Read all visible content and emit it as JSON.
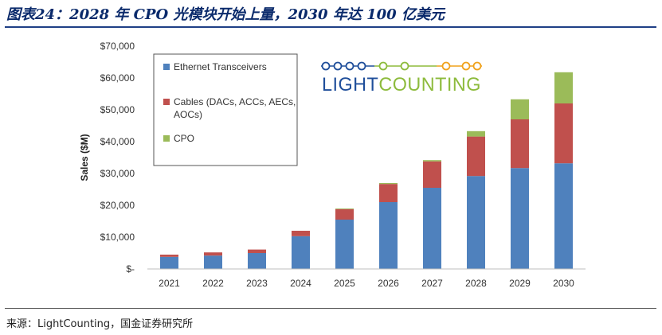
{
  "figure": {
    "title": "图表24：2028 年 CPO 光模块开始上量，2030 年达 100 亿美元",
    "source": "来源：LightCounting，国金证券研究所"
  },
  "logo": {
    "text_light": "LIGHT",
    "text_counting": "COUNTING",
    "color_dark": "#1f4e9a",
    "color_orange": "#f0a21c",
    "color_green": "#8dbb3c"
  },
  "chart_data": {
    "type": "bar",
    "stacked": true,
    "categories": [
      "2021",
      "2022",
      "2023",
      "2024",
      "2025",
      "2026",
      "2027",
      "2028",
      "2029",
      "2030"
    ],
    "series": [
      {
        "name": "Ethernet Transceivers",
        "color": "#4f81bd",
        "values": [
          3800,
          4200,
          5000,
          10300,
          15500,
          21000,
          25500,
          29200,
          31700,
          33200
        ]
      },
      {
        "name": "Cables (DACs, ACCs, AECs, AOCs)",
        "name_lines": [
          "Cables (DACs, ACCs, AECs,",
          "AOCs)"
        ],
        "color": "#c0504d",
        "values": [
          700,
          1000,
          1100,
          1700,
          3300,
          5700,
          8300,
          12400,
          15300,
          18800
        ]
      },
      {
        "name": "CPO",
        "color": "#9bbb59",
        "values": [
          0,
          0,
          0,
          0,
          200,
          300,
          400,
          1700,
          6300,
          9800
        ]
      }
    ],
    "title": "",
    "xlabel": "",
    "ylabel": "Sales ($M)",
    "ylim": [
      0,
      70000
    ],
    "yticks": [
      0,
      10000,
      20000,
      30000,
      40000,
      50000,
      60000,
      70000
    ],
    "ytick_labels": [
      "$-",
      "$10,000",
      "$20,000",
      "$30,000",
      "$40,000",
      "$50,000",
      "$60,000",
      "$70,000"
    ],
    "grid": false,
    "legend_position": "top-left"
  }
}
